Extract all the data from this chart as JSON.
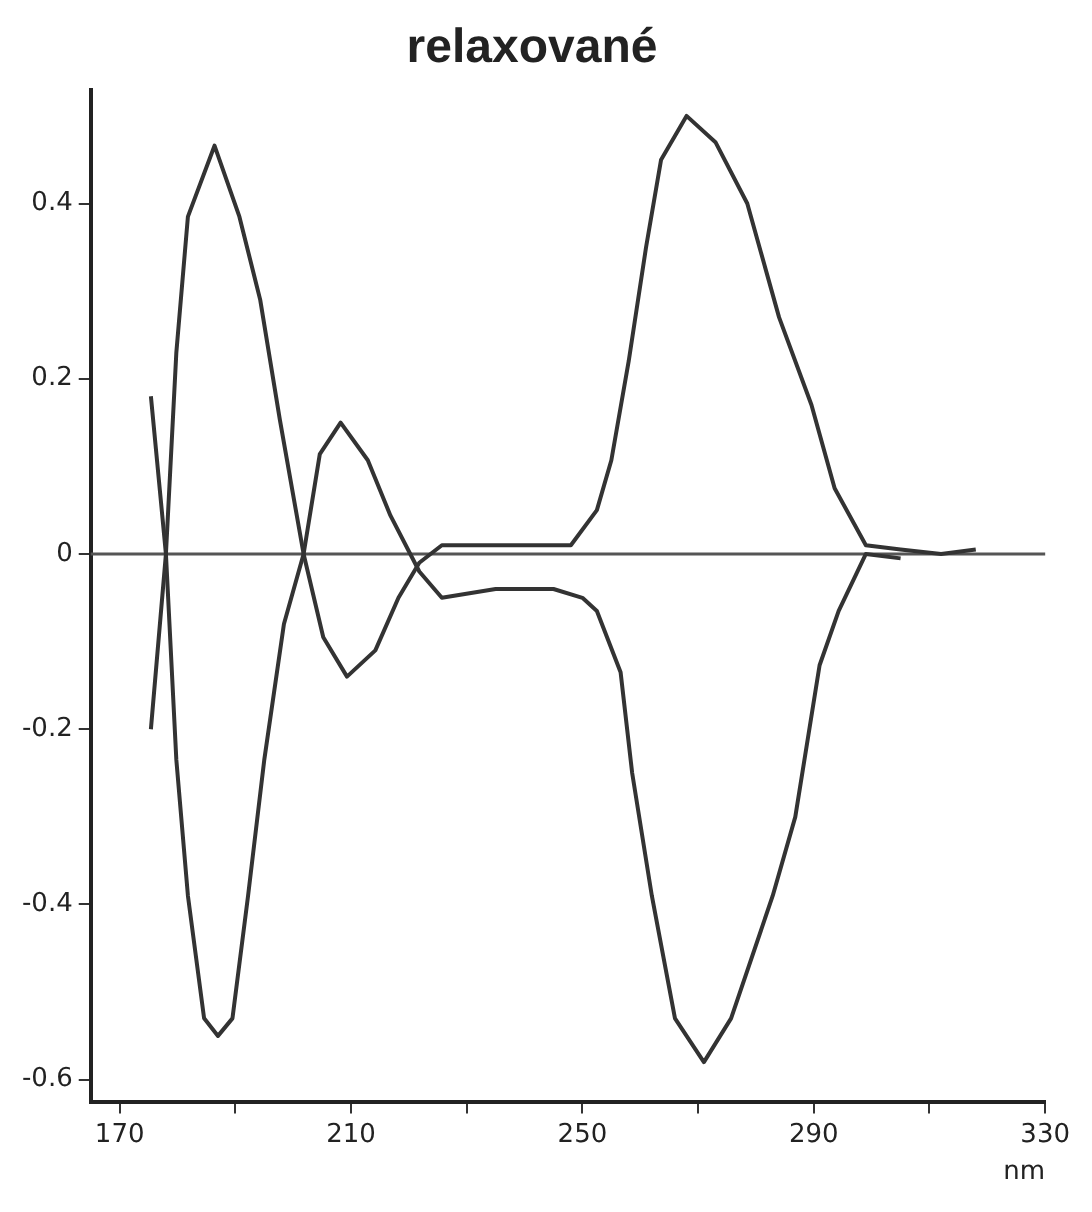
{
  "chart_data": {
    "type": "line",
    "title": "relaxované",
    "xlabel": "nm",
    "xlim": [
      165,
      330
    ],
    "xticks": [
      170,
      {
        "value": 190,
        "label": null
      },
      210,
      {
        "value": 230,
        "label": null
      },
      250,
      {
        "value": 270,
        "label": null
      },
      290,
      {
        "value": 310,
        "label": null
      },
      330
    ],
    "ylim": [
      -0.625,
      0.53
    ],
    "yticks": [
      -0.6,
      -0.4,
      -0.2,
      0,
      0.2,
      0.4
    ],
    "grid": false,
    "legend": false,
    "marker": "none",
    "line_style": "solid",
    "ref_lines": [
      {
        "axis": "y",
        "value": 0,
        "color": "#555555"
      }
    ],
    "series": [
      {
        "color": "#333333",
        "x": [
          175.4,
          178,
          179.8,
          181.8,
          186.4,
          190.7,
          194.3,
          197.7,
          201.8,
          205.2,
          209.3,
          214.2,
          218.2,
          221.8,
          225.7,
          235,
          245,
          248,
          252.5,
          255,
          258,
          261,
          263.6,
          268,
          273,
          278.5,
          284,
          289.6,
          293.6,
          299,
          305,
          312,
          318
        ],
        "values": [
          -0.2,
          0,
          0.23,
          0.385,
          0.466,
          0.385,
          0.29,
          0.153,
          0,
          -0.095,
          -0.14,
          -0.11,
          -0.05,
          -0.01,
          0.01,
          0.01,
          0.01,
          0.01,
          0.05,
          0.107,
          0.22,
          0.35,
          0.45,
          0.5,
          0.47,
          0.4,
          0.27,
          0.17,
          0.075,
          0.01,
          0.005,
          0,
          0.005
        ]
      },
      {
        "color": "#333333",
        "x": [
          175.4,
          178,
          179.8,
          181.8,
          184.6,
          187,
          189.5,
          192.2,
          195,
          198.4,
          201.8,
          204.6,
          208.2,
          212.9,
          216.8,
          221.8,
          225.7,
          235,
          245,
          250,
          252.5,
          256.6,
          258.6,
          262,
          266,
          271,
          275.7,
          282.9,
          286.8,
          291,
          294.3,
          299,
          305
        ],
        "values": [
          0.18,
          0,
          -0.235,
          -0.39,
          -0.53,
          -0.55,
          -0.53,
          -0.39,
          -0.235,
          -0.08,
          0,
          0.114,
          0.15,
          0.107,
          0.044,
          -0.02,
          -0.05,
          -0.04,
          -0.04,
          -0.05,
          -0.065,
          -0.135,
          -0.25,
          -0.39,
          -0.53,
          -0.58,
          -0.53,
          -0.39,
          -0.3,
          -0.127,
          -0.065,
          0,
          -0.005
        ]
      }
    ]
  }
}
